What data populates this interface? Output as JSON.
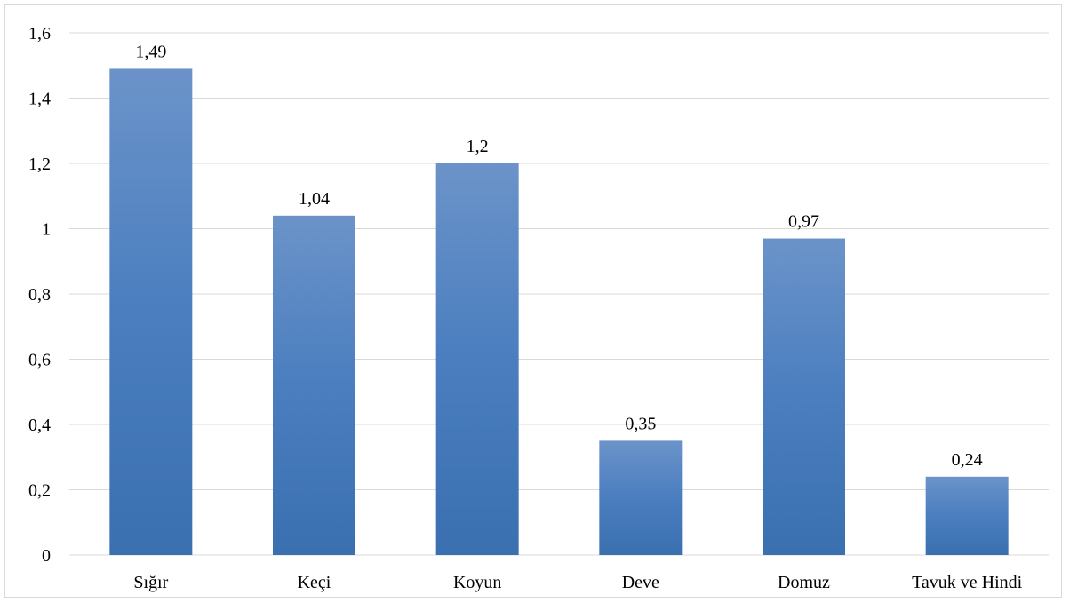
{
  "chart_data": {
    "type": "bar",
    "categories": [
      "Sığır",
      "Keçi",
      "Koyun",
      "Deve",
      "Domuz",
      "Tavuk ve Hindi"
    ],
    "values": [
      1.49,
      1.04,
      1.2,
      0.35,
      0.97,
      0.24
    ],
    "data_labels": [
      "1,49",
      "1,04",
      "1,2",
      "0,35",
      "0,97",
      "0,24"
    ],
    "ylim": [
      0,
      1.6
    ],
    "yticks": [
      0,
      0.2,
      0.4,
      0.6,
      0.8,
      1,
      1.2,
      1.4,
      1.6
    ],
    "ytick_labels": [
      "0",
      "0,2",
      "0,4",
      "0,6",
      "0,8",
      "1",
      "1,2",
      "1,4",
      "1,6"
    ],
    "grid": true,
    "legend": "none",
    "bar_color": "#4a7ebf",
    "bar_color_top": "#6b93c9",
    "bar_color_bottom": "#3a6fb0",
    "grid_color": "#d9d9d9"
  }
}
